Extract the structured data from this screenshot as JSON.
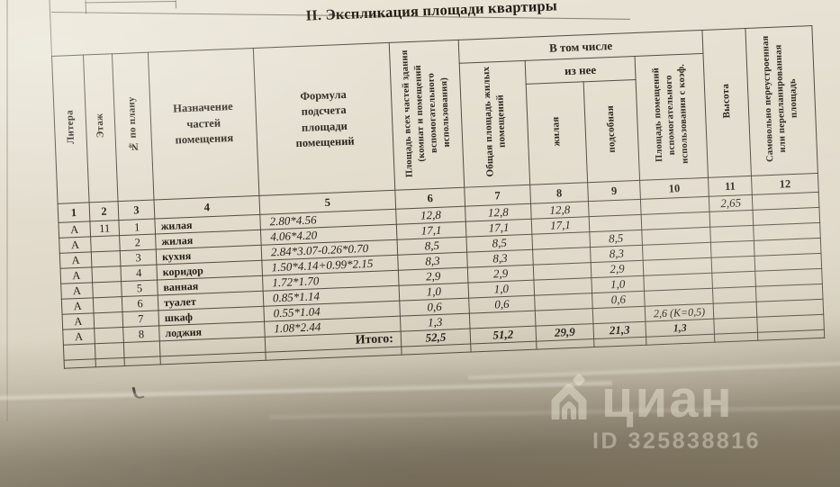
{
  "title": "II. Экспликация площади квартиры",
  "table": {
    "columns": {
      "litera": "Литера",
      "etazh": "Этаж",
      "no": "№ по плану",
      "naznachenie": "Назначение частей помещения",
      "formula": "Формула подсчета площади помещений",
      "pl_vseh": "Площадь всех частей  здания (комнат  и помещений вспомогательного использования)",
      "v_tom_chisle": "В том числе",
      "obshchaya": "Общая площадь жилых помещений",
      "iz_nee": "из нее",
      "zhilaya": "жилая",
      "podsobnaya": "подсобная",
      "vspomog": "Площадь помещений вспомогательного использования с коэф.",
      "vysota": "Высота",
      "samovolno": "Самовольно переустроенная или перепланированная площадь"
    },
    "column_numbers": [
      "1",
      "2",
      "3",
      "4",
      "5",
      "6",
      "7",
      "8",
      "9",
      "10",
      "11",
      "12"
    ],
    "rows": [
      [
        "А",
        "11",
        "1",
        "жилая",
        "2.80*4.56",
        "12,8",
        "12,8",
        "12,8",
        "",
        "",
        "2,65",
        ""
      ],
      [
        "А",
        "",
        "2",
        "жилая",
        "4.06*4.20",
        "17,1",
        "17,1",
        "17,1",
        "",
        "",
        "",
        ""
      ],
      [
        "А",
        "",
        "3",
        "кухня",
        "2.84*3.07-0.26*0.70",
        "8,5",
        "8,5",
        "",
        "8,5",
        "",
        "",
        ""
      ],
      [
        "А",
        "",
        "4",
        "коридор",
        "1.50*4.14+0.99*2.15",
        "8,3",
        "8,3",
        "",
        "8,3",
        "",
        "",
        ""
      ],
      [
        "А",
        "",
        "5",
        "ванная",
        "1.72*1.70",
        "2,9",
        "2,9",
        "",
        "2,9",
        "",
        "",
        ""
      ],
      [
        "А",
        "",
        "6",
        "туалет",
        "0.85*1.14",
        "1,0",
        "1,0",
        "",
        "1,0",
        "",
        "",
        ""
      ],
      [
        "А",
        "",
        "7",
        "шкаф",
        "0.55*1.04",
        "0,6",
        "0,6",
        "",
        "0,6",
        "",
        "",
        ""
      ],
      [
        "А",
        "",
        "8",
        "лоджия",
        "1.08*2.44",
        "1,3",
        "",
        "",
        "",
        "2,6 (К=0,5)",
        "",
        ""
      ],
      [
        "",
        "",
        "",
        "",
        "Итого:",
        "52,5",
        "51,2",
        "29,9",
        "21,3",
        "1,3",
        "",
        ""
      ],
      [
        "",
        "",
        "",
        "",
        "",
        "",
        "",
        "",
        "",
        "",
        "",
        ""
      ]
    ]
  },
  "watermark": {
    "brand": "циан",
    "id_label": "ID 325838816"
  }
}
